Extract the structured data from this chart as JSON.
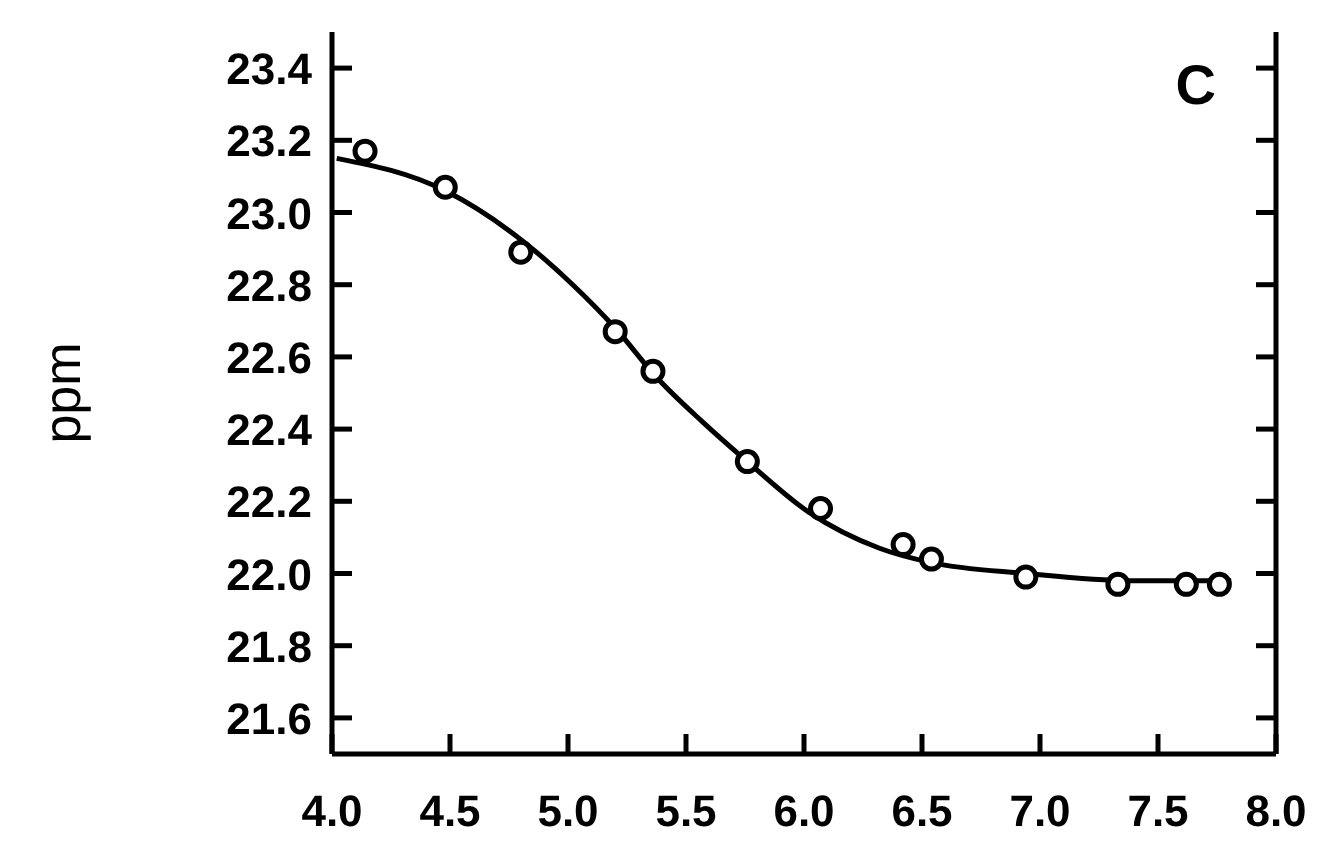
{
  "chart_data": {
    "type": "scatter",
    "ylabel": "ppm",
    "annotations": [
      "C"
    ],
    "xlim": [
      4.0,
      8.0
    ],
    "xticks": [
      {
        "value": 4.0,
        "label": "4.0"
      },
      {
        "value": 4.5,
        "label": "4.5"
      },
      {
        "value": 5.0,
        "label": "5.0"
      },
      {
        "value": 5.5,
        "label": "5.5"
      },
      {
        "value": 6.0,
        "label": "6.0"
      },
      {
        "value": 6.5,
        "label": "6.5"
      },
      {
        "value": 7.0,
        "label": "7.0"
      },
      {
        "value": 7.5,
        "label": "7.5"
      },
      {
        "value": 8.0,
        "label": "8.0"
      }
    ],
    "ylim": [
      21.5,
      23.5
    ],
    "yticks": [
      21.6,
      21.8,
      {
        "value": 22.0,
        "label": "22.0"
      },
      22.2,
      22.4,
      22.6,
      22.8,
      {
        "value": 23.0,
        "label": "23.0"
      },
      23.2,
      23.4
    ],
    "grid": false,
    "series": [
      {
        "color": "#000000",
        "marker": "circle",
        "x": [
          4.14,
          4.48,
          4.8,
          5.2,
          5.36,
          5.76,
          6.07,
          6.42,
          6.54,
          6.94,
          7.33,
          7.62,
          7.76
        ],
        "values": [
          23.17,
          23.07,
          22.89,
          22.67,
          22.56,
          22.31,
          22.18,
          22.08,
          22.04,
          21.99,
          21.97,
          21.97,
          21.97
        ]
      },
      {
        "type": "line",
        "color": "#000000",
        "line_style": "solid",
        "x": [
          4.02,
          4.48,
          4.81,
          5.02,
          5.2,
          5.38,
          5.57,
          5.76,
          6.02,
          6.32,
          6.54,
          6.94,
          7.38,
          7.81
        ],
        "values": [
          23.15,
          23.06,
          22.92,
          22.8,
          22.68,
          22.54,
          22.42,
          22.31,
          22.17,
          22.07,
          22.03,
          22.0,
          21.98,
          21.98
        ]
      }
    ]
  }
}
